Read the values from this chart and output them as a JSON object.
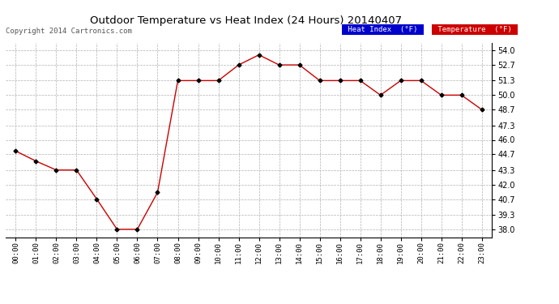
{
  "title": "Outdoor Temperature vs Heat Index (24 Hours) 20140407",
  "copyright": "Copyright 2014 Cartronics.com",
  "background_color": "#ffffff",
  "plot_bg_color": "#ffffff",
  "grid_color": "#b0b0b0",
  "line_color": "#cc0000",
  "marker_color": "#000000",
  "hours": [
    0,
    1,
    2,
    3,
    4,
    5,
    6,
    7,
    8,
    9,
    10,
    11,
    12,
    13,
    14,
    15,
    16,
    17,
    18,
    19,
    20,
    21,
    22,
    23
  ],
  "temperature": [
    45.0,
    44.1,
    43.3,
    43.3,
    40.7,
    38.0,
    38.0,
    41.3,
    51.3,
    51.3,
    51.3,
    52.7,
    53.6,
    52.7,
    52.7,
    51.3,
    51.3,
    51.3,
    50.0,
    51.3,
    51.3,
    50.0,
    50.0,
    48.7
  ],
  "ylim": [
    37.3,
    54.7
  ],
  "yticks": [
    38.0,
    39.3,
    40.7,
    42.0,
    43.3,
    44.7,
    46.0,
    47.3,
    48.7,
    50.0,
    51.3,
    52.7,
    54.0
  ],
  "legend_heat_index_bg": "#0000cc",
  "legend_temp_bg": "#cc0000",
  "legend_text_color": "#ffffff"
}
